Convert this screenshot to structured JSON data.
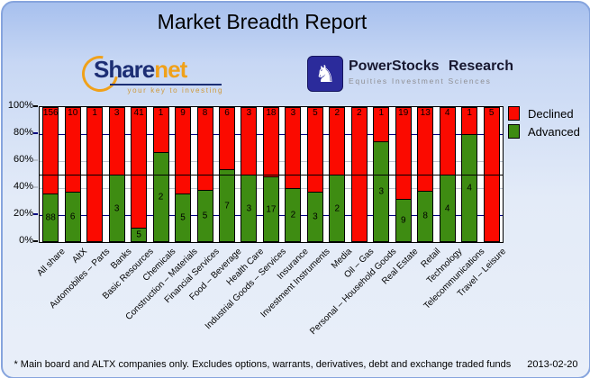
{
  "header": {
    "title": "Market Breadth Report"
  },
  "logos": {
    "sharenet": {
      "name_part1": "Share",
      "name_part2": "net",
      "tagline": "your key to investing"
    },
    "powerstocks": {
      "title": "PowerStocks Research",
      "subtitle": "Equities Investment Sciences"
    }
  },
  "chart_data": {
    "type": "bar",
    "stacked": true,
    "stacking": "percent",
    "title": "Market Breadth Report",
    "categories": [
      "All share",
      "AltX",
      "Automobiles – Parts",
      "Banks",
      "Basic Resources",
      "Chemicals",
      "Construction – Materials",
      "Financial Services",
      "Food – Beverage",
      "Health Care",
      "Industrial Goods – Services",
      "Insurance",
      "Investment Instruments",
      "Media",
      "Oil – Gas",
      "Personal – Household Goods",
      "Real Estate",
      "Retail",
      "Technology",
      "Telecommunications",
      "Travel – Leisure"
    ],
    "series": [
      {
        "name": "Declined",
        "color": "#fb0a00",
        "values": [
          156,
          10,
          1,
          3,
          41,
          1,
          9,
          8,
          6,
          3,
          18,
          3,
          5,
          2,
          2,
          1,
          19,
          13,
          4,
          1,
          5
        ]
      },
      {
        "name": "Advanced",
        "color": "#3e8c12",
        "values": [
          88,
          6,
          0,
          3,
          5,
          2,
          5,
          5,
          7,
          3,
          17,
          2,
          3,
          2,
          0,
          3,
          9,
          8,
          4,
          4,
          0
        ]
      }
    ],
    "y_ticks": [
      "0%",
      "20%",
      "40%",
      "60%",
      "80%",
      "100%"
    ],
    "ylim": [
      0,
      100
    ],
    "reference_line_pct": 50,
    "grid": true,
    "legend_position": "top-right",
    "gridline_navy_color": "#000080",
    "gridline_gray_color": "#bcc3cf"
  },
  "footer": {
    "note": "* Main board and ALTX companies only. Excludes options, warrants, derivatives, debt and exchange traded funds",
    "date": "2013-02-20"
  }
}
